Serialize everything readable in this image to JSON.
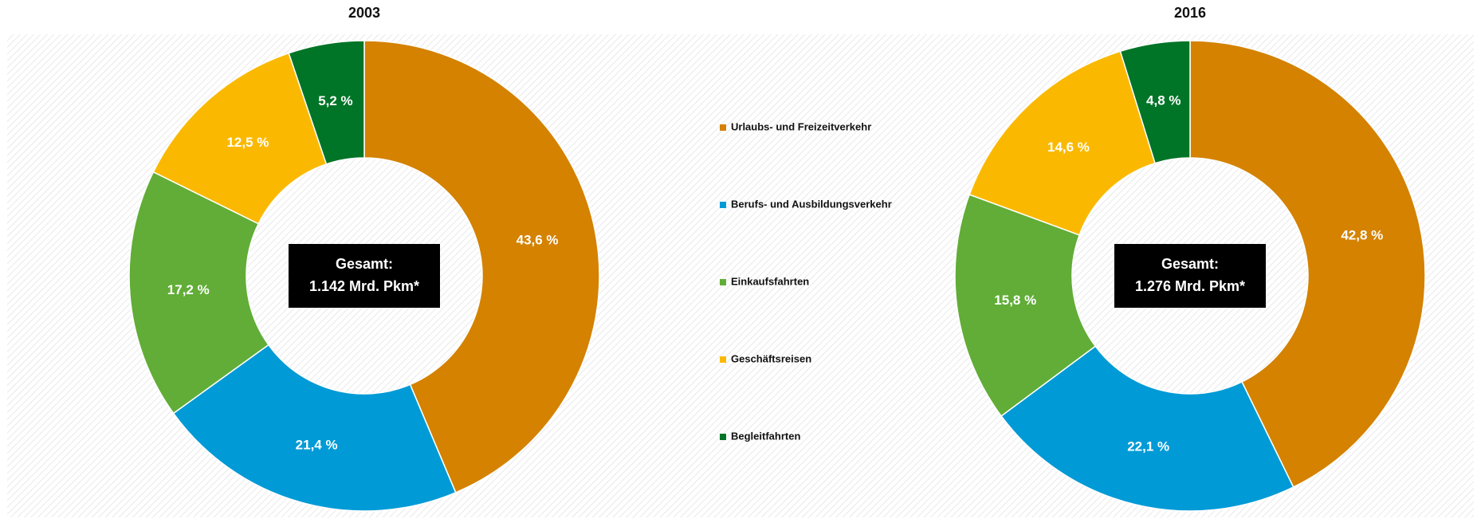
{
  "chart_data": [
    {
      "type": "pie",
      "title": "2003",
      "categories": [
        "Urlaubs- und Freizeitverkehr",
        "Berufs- und Ausbildungsverkehr",
        "Einkaufsfahrten",
        "Geschäftsreisen",
        "Begleitfahrten"
      ],
      "values": [
        43.6,
        21.4,
        17.2,
        12.5,
        5.2
      ],
      "value_labels": [
        "43,6 %",
        "21,4 %",
        "17,2 %",
        "12,5 %",
        "5,2 %"
      ],
      "colors": [
        "#d48200",
        "#009ad6",
        "#61ad37",
        "#fab900",
        "#007427"
      ],
      "center_label": [
        "Gesamt:",
        "1.142 Mrd. Pkm*"
      ]
    },
    {
      "type": "pie",
      "title": "2016",
      "categories": [
        "Urlaubs- und Freizeitverkehr",
        "Berufs- und Ausbildungsverkehr",
        "Einkaufsfahrten",
        "Geschäftsreisen",
        "Begleitfahrten"
      ],
      "values": [
        42.8,
        22.1,
        15.8,
        14.6,
        4.8
      ],
      "value_labels": [
        "42,8 %",
        "22,1 %",
        "15,8 %",
        "14,6 %",
        "4,8 %"
      ],
      "colors": [
        "#d48200",
        "#009ad6",
        "#61ad37",
        "#fab900",
        "#007427"
      ],
      "center_label": [
        "Gesamt:",
        "1.276 Mrd. Pkm*"
      ]
    }
  ]
}
